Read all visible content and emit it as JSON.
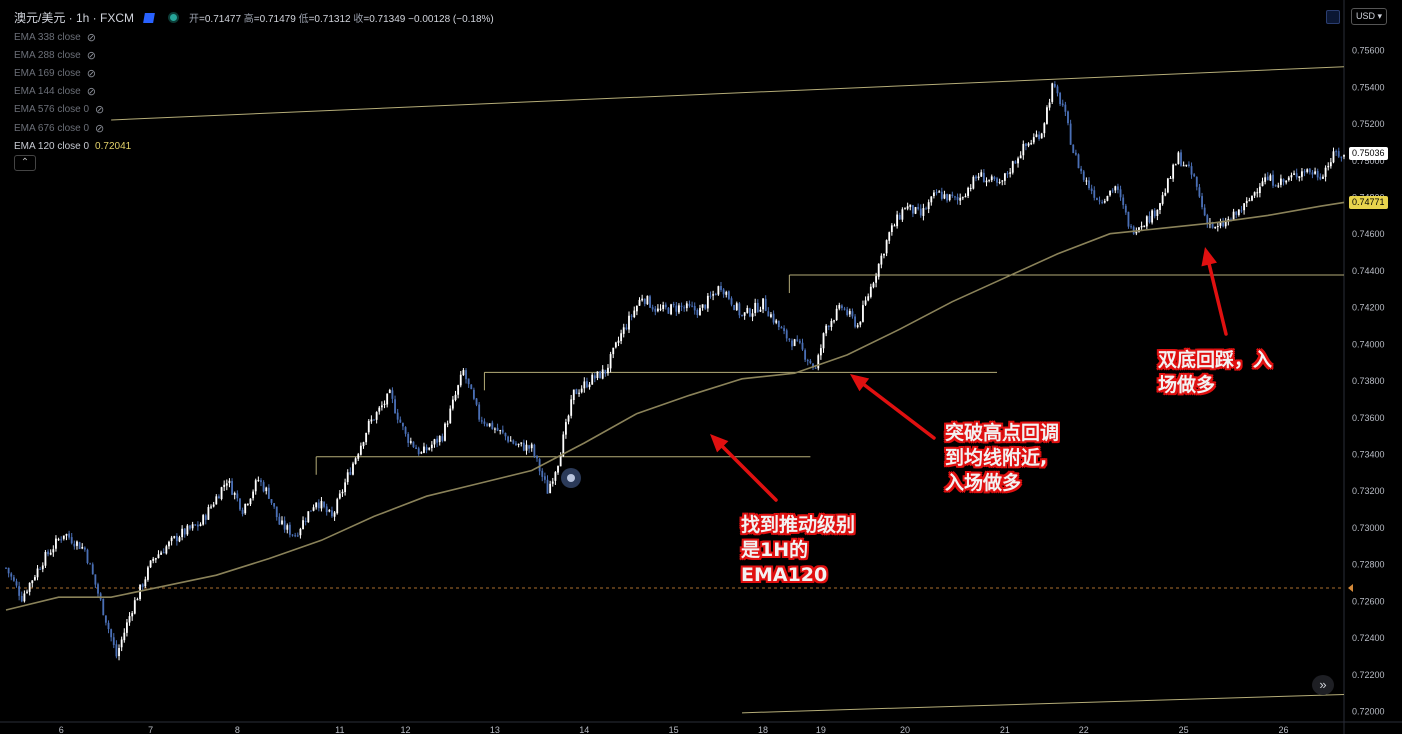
{
  "header": {
    "symbol": "澳元/美元 · 1h · FXCM",
    "ohlc": [
      {
        "label": "开",
        "value": "=0.71477"
      },
      {
        "label": "高",
        "value": "=0.71479"
      },
      {
        "label": "低",
        "value": "=0.71312"
      },
      {
        "label": "收",
        "value": "=0.71349"
      },
      {
        "label": "",
        "value": "−0.00128 (−0.18%)"
      }
    ]
  },
  "legend": {
    "items": [
      {
        "label": "EMA 338 close",
        "hidden": true
      },
      {
        "label": "EMA 288 close",
        "hidden": true
      },
      {
        "label": "EMA 169 close",
        "hidden": true
      },
      {
        "label": "EMA 144 close",
        "hidden": true
      },
      {
        "label": "EMA 576 close 0",
        "hidden": true
      },
      {
        "label": "EMA 676 close 0",
        "hidden": true
      },
      {
        "label": "EMA 120 close 0",
        "hidden": false,
        "value": "0.72041"
      }
    ]
  },
  "currency_button": "USD",
  "price_tags": {
    "current": "0.75036",
    "ema": "0.74771",
    "ema_color": "#e8d44d"
  },
  "annotations": [
    {
      "text": "找到推动级别\n是1H的\nEMA120"
    },
    {
      "text": "突破高点回调\n到均线附近,\n入场做多"
    },
    {
      "text": "双底回踩，入\n场做多"
    }
  ],
  "colors": {
    "bull": "#ffffff",
    "bear": "#4a6fb5",
    "ema": "#8a8259",
    "level": "#b5ad78",
    "arrow": "#e01010",
    "axis_text": "#b8bcc5"
  },
  "chart_data": {
    "type": "candlestick",
    "y_ticks": [
      "0.75600",
      "0.75400",
      "0.75200",
      "0.75000",
      "0.74800",
      "0.74600",
      "0.74400",
      "0.74200",
      "0.74000",
      "0.73800",
      "0.73600",
      "0.73400",
      "0.73200",
      "0.73000",
      "0.72800",
      "0.72600",
      "0.72400",
      "0.72200",
      "0.72000"
    ],
    "ylim": [
      0.7194,
      0.7571
    ],
    "x_ticks": [
      "6",
      "7",
      "8",
      "11",
      "12",
      "13",
      "14",
      "15",
      "18",
      "19",
      "20",
      "21",
      "22",
      "25",
      "26"
    ],
    "path": [
      [
        0,
        0.7278
      ],
      [
        6,
        0.7262
      ],
      [
        14,
        0.7282
      ],
      [
        22,
        0.7297
      ],
      [
        30,
        0.7288
      ],
      [
        38,
        0.725
      ],
      [
        42,
        0.723
      ],
      [
        48,
        0.7256
      ],
      [
        56,
        0.7283
      ],
      [
        66,
        0.7296
      ],
      [
        74,
        0.7302
      ],
      [
        84,
        0.7326
      ],
      [
        90,
        0.731
      ],
      [
        96,
        0.7326
      ],
      [
        100,
        0.7318
      ],
      [
        104,
        0.7302
      ],
      [
        110,
        0.7296
      ],
      [
        118,
        0.7315
      ],
      [
        124,
        0.7305
      ],
      [
        130,
        0.7328
      ],
      [
        138,
        0.7356
      ],
      [
        146,
        0.7372
      ],
      [
        152,
        0.735
      ],
      [
        158,
        0.734
      ],
      [
        166,
        0.735
      ],
      [
        174,
        0.7385
      ],
      [
        180,
        0.736
      ],
      [
        186,
        0.7354
      ],
      [
        194,
        0.7345
      ],
      [
        200,
        0.7343
      ],
      [
        206,
        0.732
      ],
      [
        210,
        0.7336
      ],
      [
        216,
        0.7373
      ],
      [
        222,
        0.738
      ],
      [
        228,
        0.7385
      ],
      [
        234,
        0.7405
      ],
      [
        242,
        0.7426
      ],
      [
        248,
        0.7418
      ],
      [
        256,
        0.742
      ],
      [
        264,
        0.7418
      ],
      [
        272,
        0.7432
      ],
      [
        280,
        0.7415
      ],
      [
        288,
        0.7422
      ],
      [
        296,
        0.7405
      ],
      [
        302,
        0.7398
      ],
      [
        308,
        0.7386
      ],
      [
        312,
        0.741
      ],
      [
        318,
        0.742
      ],
      [
        324,
        0.741
      ],
      [
        330,
        0.7435
      ],
      [
        336,
        0.746
      ],
      [
        342,
        0.7475
      ],
      [
        348,
        0.747
      ],
      [
        354,
        0.7482
      ],
      [
        362,
        0.7478
      ],
      [
        370,
        0.7492
      ],
      [
        378,
        0.7486
      ],
      [
        386,
        0.7505
      ],
      [
        394,
        0.7516
      ],
      [
        398,
        0.754
      ],
      [
        402,
        0.753
      ],
      [
        406,
        0.7505
      ],
      [
        410,
        0.749
      ],
      [
        416,
        0.7478
      ],
      [
        422,
        0.7486
      ],
      [
        428,
        0.7462
      ],
      [
        432,
        0.7466
      ],
      [
        436,
        0.747
      ],
      [
        440,
        0.748
      ],
      [
        446,
        0.7502
      ],
      [
        452,
        0.749
      ],
      [
        456,
        0.747
      ],
      [
        460,
        0.7462
      ],
      [
        466,
        0.7468
      ],
      [
        472,
        0.7476
      ],
      [
        478,
        0.749
      ],
      [
        486,
        0.7488
      ],
      [
        494,
        0.7495
      ],
      [
        500,
        0.7492
      ],
      [
        506,
        0.7504
      ],
      [
        509,
        0.7502
      ]
    ],
    "xlim": [
      0,
      509
    ],
    "xtick_bars": [
      21,
      55,
      88,
      127,
      152,
      186,
      220,
      254,
      288,
      310,
      342,
      380,
      410,
      448,
      486
    ],
    "ema120": [
      [
        0,
        0.7255
      ],
      [
        20,
        0.7262
      ],
      [
        40,
        0.7262
      ],
      [
        60,
        0.7268
      ],
      [
        80,
        0.7274
      ],
      [
        100,
        0.7283
      ],
      [
        120,
        0.7293
      ],
      [
        140,
        0.7306
      ],
      [
        160,
        0.7317
      ],
      [
        180,
        0.7324
      ],
      [
        200,
        0.7331
      ],
      [
        220,
        0.7346
      ],
      [
        240,
        0.7362
      ],
      [
        260,
        0.7372
      ],
      [
        280,
        0.7381
      ],
      [
        300,
        0.7384
      ],
      [
        320,
        0.7394
      ],
      [
        340,
        0.7408
      ],
      [
        360,
        0.7423
      ],
      [
        380,
        0.7436
      ],
      [
        400,
        0.7449
      ],
      [
        420,
        0.746
      ],
      [
        440,
        0.7463
      ],
      [
        460,
        0.7466
      ],
      [
        480,
        0.747
      ],
      [
        500,
        0.7475
      ],
      [
        509,
        0.74771
      ]
    ],
    "levels": [
      {
        "x1": 118,
        "x2": 306,
        "y": 0.73385
      },
      {
        "x1": 182,
        "x2": 377,
        "y": 0.73845
      },
      {
        "x1": 298,
        "x2": 509,
        "y": 0.74375
      }
    ],
    "channel_top": {
      "x1": 40,
      "y1": 0.7522,
      "x2": 509,
      "y2": 0.7551
    },
    "channel_bottom": {
      "x1": 280,
      "y1": 0.7199,
      "x2": 509,
      "y2": 0.7209
    },
    "dashed_level": 0.7267,
    "current_price": 0.75036
  }
}
